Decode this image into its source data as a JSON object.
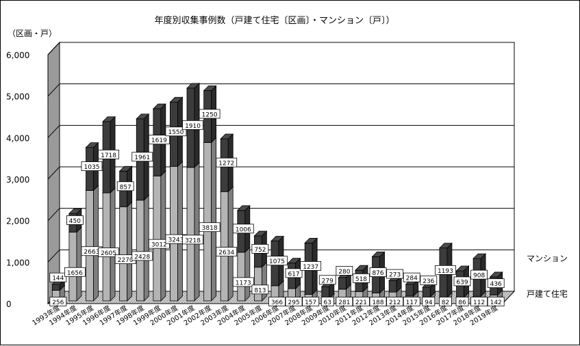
{
  "chart_data": {
    "type": "bar",
    "stacked": true,
    "three_d": true,
    "title": "年度別収集事例数（戸建て住宅〔区画〕・マンション〔戸〕）",
    "ylabel": "（区画・戸）",
    "ylim": [
      0,
      6000
    ],
    "yticks": [
      "0",
      "1,000",
      "2,000",
      "3,000",
      "4,000",
      "5,000",
      "6,000"
    ],
    "grid": true,
    "legend_position": "right",
    "categories": [
      "1993年度",
      "1994年度",
      "1995年度",
      "1996年度",
      "1997年度",
      "1998年度",
      "1999年度",
      "2000年度",
      "2001年度",
      "2002年度",
      "2003年度",
      "2004年度",
      "2005年度",
      "2006年度",
      "2007年度",
      "2008年度",
      "2009年度",
      "2010年度",
      "2011年度",
      "2012年度",
      "2013年度",
      "2014年度",
      "2015年度",
      "2016年度",
      "2017年度",
      "2018年度",
      "2019年度"
    ],
    "series": [
      {
        "name": "戸建て住宅",
        "color": "#b4b4b4",
        "values": [
          256,
          1656,
          2663,
          2605,
          2270,
          2428,
          3012,
          3243,
          3218,
          3818,
          2634,
          1173,
          813,
          366,
          295,
          157,
          63,
          281,
          221,
          188,
          212,
          117,
          94,
          82,
          86,
          112,
          142
        ]
      },
      {
        "name": "マンション",
        "color": "#3c3c3c",
        "values": [
          144,
          450,
          1035,
          1718,
          857,
          1961,
          1619,
          1550,
          1910,
          1250,
          1272,
          1006,
          752,
          1075,
          617,
          1237,
          279,
          280,
          518,
          876,
          273,
          284,
          236,
          1193,
          639,
          908,
          436
        ]
      }
    ]
  }
}
